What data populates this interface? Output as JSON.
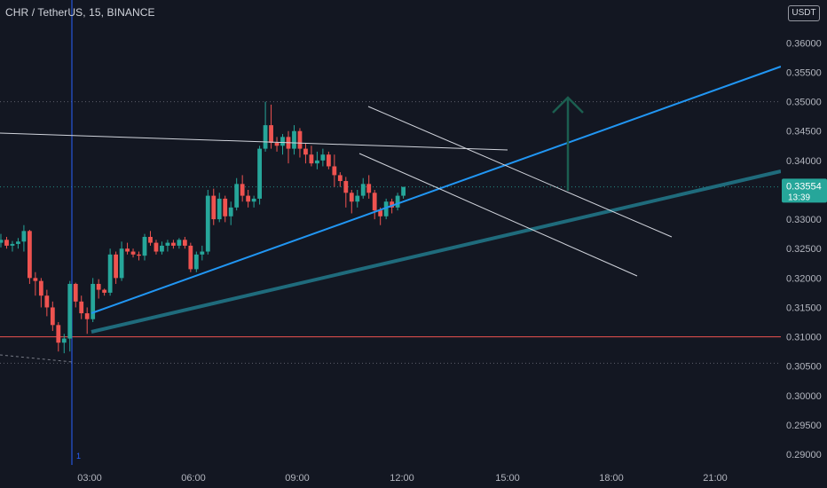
{
  "header": {
    "symbol": "CHR / TetherUS",
    "interval": "15",
    "exchange": "BINANCE",
    "currency_button": "USDT"
  },
  "last_price": {
    "value": "0.33554",
    "countdown": "13:39",
    "color": "#26a69a"
  },
  "marker_label": "1",
  "colors": {
    "background": "#131722",
    "up": "#26a69a",
    "down": "#ef5350",
    "trend_blue": "#2196f3",
    "trend_teal": "#1f6b7c",
    "white_line": "#d1d4dc",
    "support_red": "#ef5350",
    "vertical_marker": "#2962ff",
    "arrow": "#1b5e50"
  },
  "chart_data": {
    "type": "candlestick",
    "ylim": [
      0.2882,
      0.3673
    ],
    "price_ticks": [
      "0.36000",
      "0.35500",
      "0.35000",
      "0.34500",
      "0.34000",
      "0.33500",
      "0.33000",
      "0.32500",
      "0.32000",
      "0.31500",
      "0.31000",
      "0.30500",
      "0.30000",
      "0.29500",
      "0.29000"
    ],
    "time_ticks": [
      "03:00",
      "06:00",
      "09:00",
      "12:00",
      "15:00",
      "18:00",
      "21:00"
    ],
    "candles": [
      [
        0.326,
        0.3275,
        0.3252,
        0.3265
      ],
      [
        0.3265,
        0.327,
        0.325,
        0.3255
      ],
      [
        0.3255,
        0.3263,
        0.3245,
        0.3258
      ],
      [
        0.3258,
        0.3268,
        0.325,
        0.3262
      ],
      [
        0.3262,
        0.329,
        0.3245,
        0.328
      ],
      [
        0.328,
        0.3282,
        0.319,
        0.32
      ],
      [
        0.32,
        0.321,
        0.317,
        0.3195
      ],
      [
        0.3195,
        0.32,
        0.315,
        0.317
      ],
      [
        0.317,
        0.318,
        0.3135,
        0.315
      ],
      [
        0.315,
        0.316,
        0.311,
        0.312
      ],
      [
        0.312,
        0.3125,
        0.3075,
        0.309
      ],
      [
        0.309,
        0.3105,
        0.3072,
        0.3097
      ],
      [
        0.3097,
        0.3195,
        0.3075,
        0.319
      ],
      [
        0.319,
        0.3192,
        0.315,
        0.316
      ],
      [
        0.316,
        0.317,
        0.313,
        0.314
      ],
      [
        0.314,
        0.315,
        0.3105,
        0.313
      ],
      [
        0.313,
        0.32,
        0.3125,
        0.319
      ],
      [
        0.319,
        0.3198,
        0.3165,
        0.318
      ],
      [
        0.318,
        0.3182,
        0.317,
        0.3175
      ],
      [
        0.3175,
        0.325,
        0.317,
        0.324
      ],
      [
        0.324,
        0.3245,
        0.319,
        0.32
      ],
      [
        0.32,
        0.3262,
        0.3195,
        0.325
      ],
      [
        0.325,
        0.326,
        0.324,
        0.3245
      ],
      [
        0.3245,
        0.325,
        0.3235,
        0.324
      ],
      [
        0.324,
        0.3245,
        0.323,
        0.3238
      ],
      [
        0.3238,
        0.3275,
        0.323,
        0.327
      ],
      [
        0.327,
        0.328,
        0.3255,
        0.326
      ],
      [
        0.326,
        0.3265,
        0.324,
        0.3245
      ],
      [
        0.3245,
        0.3262,
        0.324,
        0.3255
      ],
      [
        0.3255,
        0.3265,
        0.3245,
        0.326
      ],
      [
        0.326,
        0.3265,
        0.325,
        0.3255
      ],
      [
        0.3255,
        0.3268,
        0.325,
        0.3265
      ],
      [
        0.3265,
        0.327,
        0.325,
        0.3255
      ],
      [
        0.3255,
        0.326,
        0.321,
        0.3215
      ],
      [
        0.3215,
        0.3245,
        0.321,
        0.324
      ],
      [
        0.324,
        0.3255,
        0.323,
        0.3245
      ],
      [
        0.3245,
        0.335,
        0.324,
        0.334
      ],
      [
        0.334,
        0.3352,
        0.329,
        0.33
      ],
      [
        0.33,
        0.3345,
        0.3295,
        0.3335
      ],
      [
        0.3335,
        0.334,
        0.3295,
        0.3305
      ],
      [
        0.3305,
        0.333,
        0.329,
        0.332
      ],
      [
        0.332,
        0.337,
        0.3315,
        0.336
      ],
      [
        0.336,
        0.3375,
        0.333,
        0.334
      ],
      [
        0.334,
        0.335,
        0.332,
        0.333
      ],
      [
        0.333,
        0.334,
        0.332,
        0.3335
      ],
      [
        0.3335,
        0.3425,
        0.3325,
        0.342
      ],
      [
        0.342,
        0.35,
        0.3415,
        0.346
      ],
      [
        0.346,
        0.3495,
        0.342,
        0.343
      ],
      [
        0.343,
        0.344,
        0.3415,
        0.3425
      ],
      [
        0.3425,
        0.3445,
        0.341,
        0.344
      ],
      [
        0.344,
        0.345,
        0.3395,
        0.342
      ],
      [
        0.342,
        0.346,
        0.341,
        0.345
      ],
      [
        0.345,
        0.3455,
        0.3405,
        0.342
      ],
      [
        0.342,
        0.343,
        0.3395,
        0.341
      ],
      [
        0.341,
        0.3425,
        0.339,
        0.3395
      ],
      [
        0.3395,
        0.3415,
        0.3385,
        0.34
      ],
      [
        0.34,
        0.342,
        0.339,
        0.341
      ],
      [
        0.341,
        0.3415,
        0.3385,
        0.339
      ],
      [
        0.339,
        0.341,
        0.3355,
        0.3375
      ],
      [
        0.3375,
        0.338,
        0.3355,
        0.3365
      ],
      [
        0.3365,
        0.3372,
        0.332,
        0.3345
      ],
      [
        0.3345,
        0.335,
        0.331,
        0.333
      ],
      [
        0.333,
        0.335,
        0.332,
        0.334
      ],
      [
        0.334,
        0.337,
        0.3335,
        0.336
      ],
      [
        0.336,
        0.3375,
        0.3335,
        0.3345
      ],
      [
        0.3345,
        0.335,
        0.33,
        0.3315
      ],
      [
        0.3315,
        0.332,
        0.329,
        0.3305
      ],
      [
        0.3305,
        0.3335,
        0.33,
        0.333
      ],
      [
        0.333,
        0.3335,
        0.331,
        0.332
      ],
      [
        0.332,
        0.3345,
        0.3315,
        0.334
      ],
      [
        0.334,
        0.3355,
        0.3335,
        0.3355
      ]
    ],
    "annotations": {
      "support_price": 0.31,
      "dotted_level_high": 0.35,
      "dotted_level_low": 0.3055,
      "arrow_target": 0.35
    }
  }
}
